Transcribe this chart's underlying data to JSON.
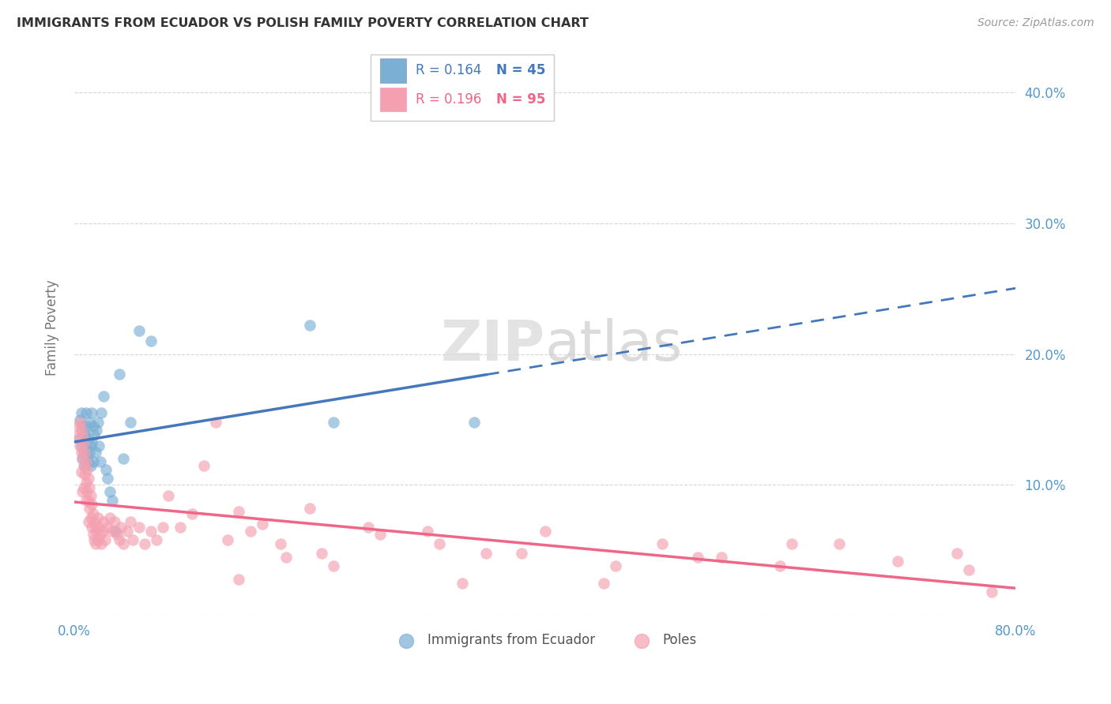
{
  "title": "IMMIGRANTS FROM ECUADOR VS POLISH FAMILY POVERTY CORRELATION CHART",
  "source": "Source: ZipAtlas.com",
  "ylabel": "Family Poverty",
  "xlim": [
    0.0,
    0.8
  ],
  "ylim": [
    0.0,
    0.44
  ],
  "x_tick_positions": [
    0.0,
    0.1,
    0.2,
    0.3,
    0.4,
    0.5,
    0.6,
    0.7,
    0.8
  ],
  "x_tick_labels": [
    "0.0%",
    "",
    "",
    "",
    "",
    "",
    "",
    "",
    "80.0%"
  ],
  "y_tick_positions": [
    0.0,
    0.1,
    0.2,
    0.3,
    0.4
  ],
  "y_tick_labels_right": [
    "",
    "10.0%",
    "20.0%",
    "30.0%",
    "40.0%"
  ],
  "legend_r1": "0.164",
  "legend_n1": "45",
  "legend_r2": "0.196",
  "legend_n2": "95",
  "color_blue": "#7BAFD4",
  "color_pink": "#F4A0B0",
  "color_blue_line": "#4477BB",
  "color_pink_line": "#EE6688",
  "color_blue_text": "#4477BB",
  "color_pink_text": "#EE6688",
  "color_axis_label": "#5599CC",
  "background_color": "#FFFFFF",
  "grid_color": "#CCCCCC",
  "ecuador_x": [
    0.004,
    0.005,
    0.006,
    0.006,
    0.007,
    0.007,
    0.008,
    0.008,
    0.009,
    0.009,
    0.01,
    0.01,
    0.011,
    0.011,
    0.012,
    0.012,
    0.013,
    0.013,
    0.014,
    0.014,
    0.015,
    0.015,
    0.016,
    0.016,
    0.017,
    0.018,
    0.019,
    0.02,
    0.021,
    0.022,
    0.023,
    0.025,
    0.027,
    0.028,
    0.03,
    0.032,
    0.035,
    0.038,
    0.042,
    0.048,
    0.055,
    0.065,
    0.2,
    0.22,
    0.34
  ],
  "ecuador_y": [
    0.135,
    0.15,
    0.13,
    0.155,
    0.145,
    0.12,
    0.14,
    0.125,
    0.138,
    0.115,
    0.128,
    0.155,
    0.122,
    0.145,
    0.118,
    0.135,
    0.125,
    0.148,
    0.13,
    0.115,
    0.155,
    0.132,
    0.145,
    0.118,
    0.138,
    0.125,
    0.142,
    0.148,
    0.13,
    0.118,
    0.155,
    0.168,
    0.112,
    0.105,
    0.095,
    0.088,
    0.065,
    0.185,
    0.12,
    0.148,
    0.218,
    0.21,
    0.222,
    0.148,
    0.148
  ],
  "poles_x": [
    0.003,
    0.004,
    0.005,
    0.005,
    0.006,
    0.006,
    0.006,
    0.007,
    0.007,
    0.007,
    0.008,
    0.008,
    0.008,
    0.009,
    0.009,
    0.01,
    0.01,
    0.01,
    0.011,
    0.011,
    0.012,
    0.012,
    0.012,
    0.013,
    0.013,
    0.014,
    0.014,
    0.015,
    0.015,
    0.016,
    0.016,
    0.017,
    0.017,
    0.018,
    0.018,
    0.019,
    0.02,
    0.02,
    0.021,
    0.022,
    0.023,
    0.024,
    0.025,
    0.026,
    0.028,
    0.03,
    0.032,
    0.034,
    0.036,
    0.038,
    0.04,
    0.042,
    0.045,
    0.048,
    0.05,
    0.055,
    0.06,
    0.065,
    0.07,
    0.075,
    0.08,
    0.09,
    0.1,
    0.11,
    0.12,
    0.13,
    0.14,
    0.15,
    0.16,
    0.18,
    0.2,
    0.22,
    0.25,
    0.3,
    0.35,
    0.4,
    0.45,
    0.5,
    0.55,
    0.6,
    0.65,
    0.7,
    0.75,
    0.76,
    0.78,
    0.61,
    0.53,
    0.46,
    0.38,
    0.31,
    0.26,
    0.21,
    0.175,
    0.14,
    0.33
  ],
  "poles_y": [
    0.138,
    0.145,
    0.148,
    0.13,
    0.142,
    0.125,
    0.11,
    0.138,
    0.12,
    0.095,
    0.132,
    0.115,
    0.098,
    0.125,
    0.108,
    0.118,
    0.102,
    0.088,
    0.112,
    0.095,
    0.105,
    0.088,
    0.072,
    0.098,
    0.082,
    0.092,
    0.075,
    0.085,
    0.068,
    0.078,
    0.062,
    0.072,
    0.058,
    0.068,
    0.055,
    0.065,
    0.075,
    0.058,
    0.068,
    0.062,
    0.055,
    0.065,
    0.072,
    0.058,
    0.068,
    0.075,
    0.065,
    0.072,
    0.062,
    0.058,
    0.068,
    0.055,
    0.065,
    0.072,
    0.058,
    0.068,
    0.055,
    0.065,
    0.058,
    0.068,
    0.092,
    0.068,
    0.078,
    0.115,
    0.148,
    0.058,
    0.08,
    0.065,
    0.07,
    0.045,
    0.082,
    0.038,
    0.068,
    0.065,
    0.048,
    0.065,
    0.025,
    0.055,
    0.045,
    0.038,
    0.055,
    0.042,
    0.048,
    0.035,
    0.018,
    0.055,
    0.045,
    0.038,
    0.048,
    0.055,
    0.062,
    0.048,
    0.055,
    0.028,
    0.025
  ],
  "trendline_blue_solid_end": 0.35,
  "trendline_blue_start": 0.0,
  "trendline_blue_end": 0.8
}
